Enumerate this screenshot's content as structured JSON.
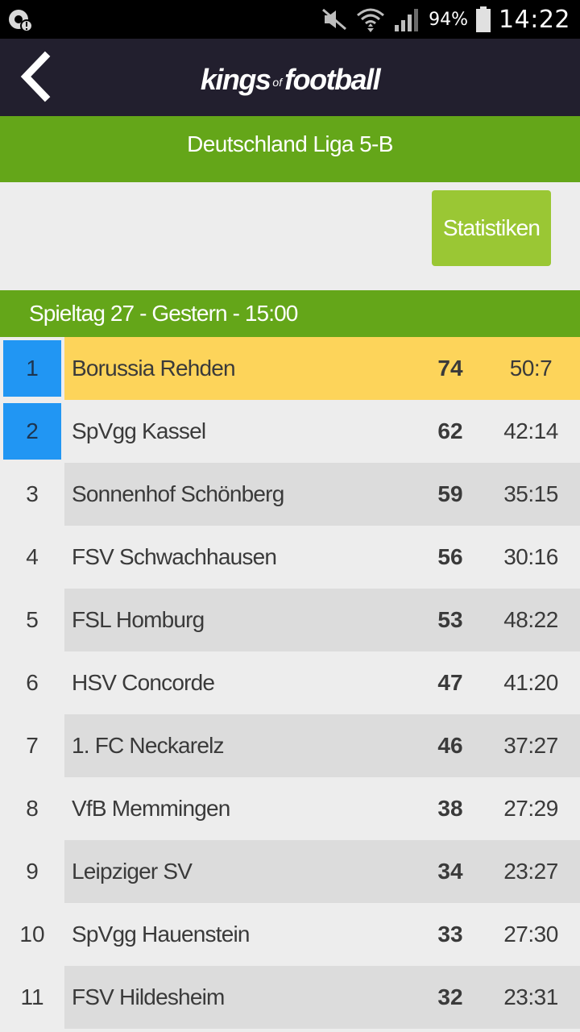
{
  "status_bar": {
    "battery": "94%",
    "time": "14:22",
    "icons": [
      "notification-icon",
      "mute-icon",
      "wifi-icon",
      "signal-icon",
      "battery-icon"
    ]
  },
  "app": {
    "logo_kings": "kings",
    "logo_of": "of",
    "logo_football": "football",
    "back_icon": "chevron-left-icon"
  },
  "league": {
    "title": "Deutschland Liga 5-B"
  },
  "stats_button": {
    "label": "Statistiken"
  },
  "matchday": {
    "label": "Spieltag 27 - Gestern - 15:00"
  },
  "colors": {
    "header": "#221f2e",
    "green": "#64a619",
    "button_green": "#9ac734",
    "promotion_blue": "#2196f3",
    "leader_yellow": "#fdd45a"
  },
  "table": {
    "rows": [
      {
        "rank": "1",
        "team": "Borussia Rehden",
        "points": "74",
        "goals": "50:7"
      },
      {
        "rank": "2",
        "team": "SpVgg Kassel",
        "points": "62",
        "goals": "42:14"
      },
      {
        "rank": "3",
        "team": "Sonnenhof Schönberg",
        "points": "59",
        "goals": "35:15"
      },
      {
        "rank": "4",
        "team": "FSV Schwachhausen",
        "points": "56",
        "goals": "30:16"
      },
      {
        "rank": "5",
        "team": "FSL Homburg",
        "points": "53",
        "goals": "48:22"
      },
      {
        "rank": "6",
        "team": "HSV Concorde",
        "points": "47",
        "goals": "41:20"
      },
      {
        "rank": "7",
        "team": "1. FC Neckarelz",
        "points": "46",
        "goals": "37:27"
      },
      {
        "rank": "8",
        "team": "VfB Memmingen",
        "points": "38",
        "goals": "27:29"
      },
      {
        "rank": "9",
        "team": "Leipziger SV",
        "points": "34",
        "goals": "23:27"
      },
      {
        "rank": "10",
        "team": "SpVgg Hauenstein",
        "points": "33",
        "goals": "27:30"
      },
      {
        "rank": "11",
        "team": "FSV Hildesheim",
        "points": "32",
        "goals": "23:31"
      }
    ]
  }
}
